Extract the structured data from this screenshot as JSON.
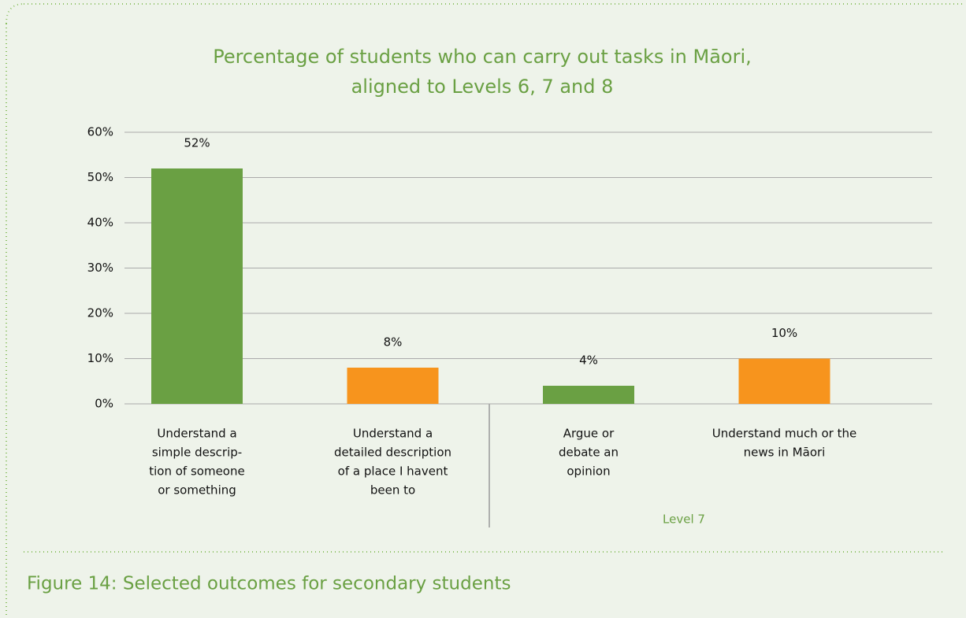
{
  "chart_data": {
    "type": "bar",
    "title": [
      "Percentage of students who can carry out tasks in Māori,",
      "aligned to Levels 6, 7 and 8"
    ],
    "categories": [
      [
        "Understand a",
        "simple descrip-",
        "tion of someone",
        "or something"
      ],
      [
        "Understand a",
        "detailed description",
        "of a place I havent",
        "been to"
      ],
      [
        "Argue or",
        "debate an",
        "opinion"
      ],
      [
        "Understand much or the",
        "news in Māori"
      ]
    ],
    "values": [
      52,
      8,
      4,
      10
    ],
    "value_labels": [
      "52%",
      "8%",
      "4%",
      "10%"
    ],
    "colors": [
      "#6aa043",
      "#f7941d",
      "#6aa043",
      "#f7941d"
    ],
    "ylim": [
      0,
      60
    ],
    "yticks": [
      {
        "value": 0,
        "label": "0%"
      },
      {
        "value": 10,
        "label": "10%"
      },
      {
        "value": 20,
        "label": "20%"
      },
      {
        "value": 30,
        "label": "30%"
      },
      {
        "value": 40,
        "label": "40%"
      },
      {
        "value": 50,
        "label": "50%"
      },
      {
        "value": 60,
        "label": "60%"
      }
    ],
    "grid": true,
    "group_label": "Level 7"
  },
  "caption": "Figure 14: Selected outcomes for secondary students"
}
